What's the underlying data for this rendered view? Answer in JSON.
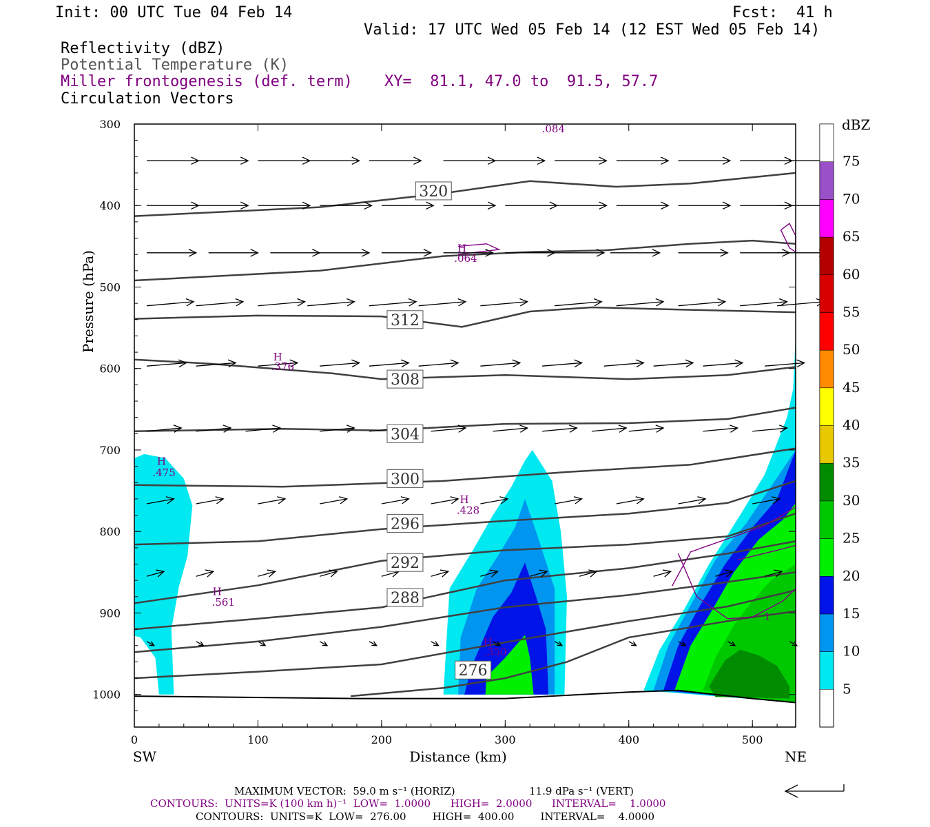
{
  "header": {
    "init": "Init: 00 UTC Tue 04 Feb 14",
    "fcst": "Fcst:  41 h",
    "valid": "Valid: 17 UTC Wed 05 Feb 14 (12 EST Wed 05 Feb 14)",
    "titles": [
      "Reflectivity (dBZ)",
      "Potential Temperature (K)",
      "Miller frontogenesis (def. term)",
      "Circulation Vectors"
    ],
    "xy": "XY=  81.1, 47.0 to  91.5, 57.7"
  },
  "colors": {
    "theta": "#404040",
    "fronto": "#800080",
    "levels": [
      "#00e8f0",
      "#0096f0",
      "#0014e8",
      "#00f000",
      "#00c800",
      "#008c00",
      "#e8c800",
      "#ffff00",
      "#ff8c00",
      "#ff0000",
      "#d80000",
      "#b40000",
      "#ff00ff",
      "#9a50c8"
    ]
  },
  "chart_data": {
    "type": "cross-section",
    "xlabel": "Distance (km)",
    "ylabel": "Pressure (hPa)",
    "xlim": [
      0,
      535
    ],
    "ylim": [
      1040,
      300
    ],
    "x_ticks": [
      0,
      100,
      200,
      300,
      400,
      500
    ],
    "y_ticks": [
      300,
      400,
      500,
      600,
      700,
      800,
      900,
      1000
    ],
    "x_end_labels": [
      "SW",
      "NE"
    ],
    "colorbar": {
      "unit": "dBZ",
      "ticks": [
        "5",
        "10",
        "15",
        "20",
        "25",
        "30",
        "35",
        "40",
        "45",
        "50",
        "55",
        "60",
        "65",
        "70",
        "75"
      ]
    },
    "theta_labels": [
      {
        "text": "320",
        "x": 242,
        "p": 382
      },
      {
        "text": "312",
        "x": 219,
        "p": 540
      },
      {
        "text": "308",
        "x": 219,
        "p": 613
      },
      {
        "text": "304",
        "x": 219,
        "p": 680
      },
      {
        "text": "300",
        "x": 219,
        "p": 735
      },
      {
        "text": "296",
        "x": 219,
        "p": 790
      },
      {
        "text": "292",
        "x": 219,
        "p": 838
      },
      {
        "text": "288",
        "x": 219,
        "p": 881
      },
      {
        "text": "276",
        "x": 274,
        "p": 970
      }
    ],
    "theta_lines": [
      [
        [
          0,
          413
        ],
        [
          150,
          402
        ],
        [
          250,
          385
        ],
        [
          320,
          370
        ],
        [
          390,
          377
        ],
        [
          450,
          373
        ],
        [
          535,
          360
        ]
      ],
      [
        [
          0,
          492
        ],
        [
          150,
          480
        ],
        [
          250,
          462
        ],
        [
          320,
          457
        ],
        [
          380,
          455
        ],
        [
          450,
          447
        ],
        [
          500,
          443
        ],
        [
          535,
          447
        ]
      ],
      [
        [
          0,
          539
        ],
        [
          100,
          535
        ],
        [
          200,
          536
        ],
        [
          265,
          549
        ],
        [
          320,
          530
        ],
        [
          370,
          525
        ],
        [
          450,
          528
        ],
        [
          535,
          531
        ]
      ],
      [
        [
          0,
          589
        ],
        [
          60,
          594
        ],
        [
          160,
          606
        ],
        [
          200,
          613
        ],
        [
          300,
          608
        ],
        [
          400,
          613
        ],
        [
          480,
          608
        ],
        [
          535,
          598
        ]
      ],
      [
        [
          0,
          677
        ],
        [
          120,
          674
        ],
        [
          200,
          676
        ],
        [
          300,
          668
        ],
        [
          400,
          667
        ],
        [
          480,
          662
        ],
        [
          535,
          648
        ]
      ],
      [
        [
          0,
          743
        ],
        [
          120,
          745
        ],
        [
          250,
          738
        ],
        [
          350,
          727
        ],
        [
          450,
          718
        ],
        [
          535,
          698
        ]
      ],
      [
        [
          0,
          816
        ],
        [
          100,
          812
        ],
        [
          200,
          797
        ],
        [
          300,
          787
        ],
        [
          400,
          778
        ],
        [
          480,
          765
        ],
        [
          535,
          738
        ]
      ],
      [
        [
          0,
          888
        ],
        [
          100,
          866
        ],
        [
          200,
          836
        ],
        [
          300,
          823
        ],
        [
          400,
          816
        ],
        [
          480,
          806
        ],
        [
          535,
          778
        ]
      ],
      [
        [
          0,
          920
        ],
        [
          100,
          907
        ],
        [
          200,
          893
        ],
        [
          300,
          860
        ],
        [
          400,
          845
        ],
        [
          480,
          827
        ],
        [
          535,
          812
        ]
      ],
      [
        [
          0,
          948
        ],
        [
          100,
          935
        ],
        [
          200,
          917
        ],
        [
          300,
          893
        ],
        [
          400,
          878
        ],
        [
          480,
          862
        ],
        [
          535,
          850
        ]
      ],
      [
        [
          0,
          980
        ],
        [
          100,
          972
        ],
        [
          200,
          963
        ],
        [
          300,
          936
        ],
        [
          400,
          910
        ],
        [
          480,
          892
        ],
        [
          535,
          872
        ]
      ],
      [
        [
          175,
          1002
        ],
        [
          250,
          992
        ],
        [
          300,
          980
        ],
        [
          350,
          960
        ],
        [
          400,
          930
        ],
        [
          460,
          915
        ],
        [
          500,
          905
        ],
        [
          535,
          898
        ]
      ]
    ],
    "ground": [
      [
        0,
        1002
      ],
      [
        180,
        1005
      ],
      [
        300,
        1005
      ],
      [
        400,
        997
      ],
      [
        440,
        995
      ],
      [
        500,
        1005
      ],
      [
        535,
        1010
      ]
    ],
    "fronto_boxes": [
      {
        "text": ".084",
        "x": 339,
        "p": 305
      },
      {
        "text": "H",
        "x": 265,
        "p": 452
      },
      {
        "text": ".064",
        "x": 268,
        "p": 464
      },
      {
        "text": "H",
        "x": 116,
        "p": 585
      },
      {
        "text": ".376",
        "x": 120,
        "p": 597
      },
      {
        "text": "H",
        "x": 22,
        "p": 713
      },
      {
        "text": ".475",
        "x": 24,
        "p": 727
      },
      {
        "text": "H",
        "x": 267,
        "p": 760
      },
      {
        "text": ".428",
        "x": 270,
        "p": 773
      },
      {
        "text": "H",
        "x": 67,
        "p": 873
      },
      {
        "text": ".561",
        "x": 72,
        "p": 886
      },
      {
        "text": "H",
        "x": 286,
        "p": 935
      },
      {
        "text": ".350",
        "x": 292,
        "p": 947
      },
      {
        "text": "1",
        "x": 512,
        "p": 904
      }
    ],
    "fronto_lines": [
      [
        [
          440,
          827
        ],
        [
          455,
          880
        ],
        [
          480,
          907
        ],
        [
          500,
          905
        ],
        [
          525,
          885
        ],
        [
          535,
          870
        ]
      ],
      [
        [
          435,
          867
        ],
        [
          450,
          825
        ],
        [
          510,
          793
        ],
        [
          535,
          770
        ]
      ],
      [
        [
          488,
          835
        ],
        [
          520,
          823
        ],
        [
          535,
          817
        ]
      ],
      [
        [
          262,
          450
        ],
        [
          285,
          447
        ],
        [
          295,
          454
        ],
        [
          262,
          460
        ]
      ],
      [
        [
          523,
          430
        ],
        [
          530,
          422
        ],
        [
          535,
          437
        ],
        [
          535,
          457
        ],
        [
          530,
          452
        ],
        [
          523,
          430
        ]
      ]
    ],
    "reflectivity_polys": [
      {
        "level": 0,
        "pts": [
          [
            0,
            1000
          ],
          [
            0,
            710
          ],
          [
            8,
            705
          ],
          [
            25,
            710
          ],
          [
            40,
            735
          ],
          [
            47,
            768
          ],
          [
            43,
            830
          ],
          [
            36,
            868
          ],
          [
            30,
            920
          ],
          [
            32,
            1000
          ],
          [
            20,
            1000
          ],
          [
            17,
            955
          ],
          [
            5,
            930
          ],
          [
            0,
            928
          ]
        ]
      },
      {
        "level": 0,
        "pts": [
          [
            250,
            1000
          ],
          [
            255,
            870
          ],
          [
            275,
            820
          ],
          [
            290,
            780
          ],
          [
            305,
            745
          ],
          [
            316,
            713
          ],
          [
            322,
            700
          ],
          [
            338,
            738
          ],
          [
            345,
            800
          ],
          [
            350,
            880
          ],
          [
            348,
            1000
          ]
        ]
      },
      {
        "level": 1,
        "pts": [
          [
            262,
            1000
          ],
          [
            264,
            930
          ],
          [
            277,
            870
          ],
          [
            295,
            828
          ],
          [
            308,
            795
          ],
          [
            316,
            760
          ],
          [
            325,
            800
          ],
          [
            340,
            870
          ],
          [
            340,
            1000
          ]
        ]
      },
      {
        "level": 2,
        "pts": [
          [
            267,
            1000
          ],
          [
            273,
            965
          ],
          [
            290,
            905
          ],
          [
            305,
            875
          ],
          [
            316,
            838
          ],
          [
            325,
            880
          ],
          [
            333,
            920
          ],
          [
            335,
            1000
          ]
        ]
      },
      {
        "level": 3,
        "pts": [
          [
            284,
            1000
          ],
          [
            285,
            978
          ],
          [
            300,
            955
          ],
          [
            316,
            927
          ],
          [
            320,
            955
          ],
          [
            323,
            1000
          ]
        ]
      },
      {
        "level": 0,
        "pts": [
          [
            412,
            995
          ],
          [
            425,
            945
          ],
          [
            445,
            895
          ],
          [
            465,
            840
          ],
          [
            490,
            780
          ],
          [
            510,
            730
          ],
          [
            528,
            660
          ],
          [
            533,
            625
          ],
          [
            535,
            560
          ],
          [
            535,
            1010
          ]
        ]
      },
      {
        "level": 1,
        "pts": [
          [
            420,
            995
          ],
          [
            432,
            940
          ],
          [
            452,
            885
          ],
          [
            470,
            835
          ],
          [
            495,
            790
          ],
          [
            515,
            745
          ],
          [
            535,
            700
          ],
          [
            535,
            1010
          ]
        ]
      },
      {
        "level": 2,
        "pts": [
          [
            428,
            995
          ],
          [
            440,
            940
          ],
          [
            458,
            890
          ],
          [
            478,
            840
          ],
          [
            500,
            795
          ],
          [
            520,
            760
          ],
          [
            535,
            700
          ],
          [
            535,
            1010
          ]
        ]
      },
      {
        "level": 3,
        "pts": [
          [
            437,
            995
          ],
          [
            450,
            940
          ],
          [
            468,
            895
          ],
          [
            485,
            850
          ],
          [
            505,
            810
          ],
          [
            525,
            785
          ],
          [
            535,
            765
          ],
          [
            535,
            1010
          ]
        ]
      },
      {
        "level": 4,
        "pts": [
          [
            460,
            995
          ],
          [
            470,
            955
          ],
          [
            485,
            915
          ],
          [
            500,
            885
          ],
          [
            515,
            860
          ],
          [
            535,
            840
          ],
          [
            535,
            1010
          ]
        ]
      },
      {
        "level": 5,
        "pts": [
          [
            465,
            990
          ],
          [
            478,
            958
          ],
          [
            490,
            945
          ],
          [
            505,
            952
          ],
          [
            520,
            965
          ],
          [
            530,
            990
          ],
          [
            530,
            1005
          ],
          [
            470,
            1003
          ]
        ]
      }
    ],
    "vector_rows": [
      {
        "p": 345,
        "xs": [
          10,
          50,
          100,
          140,
          190,
          250,
          290,
          340,
          390,
          440,
          490,
          520
        ],
        "dx": 42,
        "dp": 0
      },
      {
        "p": 400,
        "xs": [
          10,
          50,
          100,
          150,
          200,
          250,
          300,
          340,
          390,
          440,
          490,
          520
        ],
        "dx": 42,
        "dp": 0
      },
      {
        "p": 458,
        "xs": [
          10,
          60,
          110,
          150,
          200,
          250,
          300,
          340,
          385,
          440,
          490,
          520
        ],
        "dx": 40,
        "dp": 0
      },
      {
        "p": 523,
        "xs": [
          10,
          50,
          100,
          140,
          190,
          230,
          280,
          340,
          390,
          440,
          490,
          520
        ],
        "dx": 38,
        "dp": -5
      },
      {
        "p": 597,
        "xs": [
          10,
          50,
          100,
          150,
          190,
          230,
          280,
          330,
          380,
          420,
          460,
          510
        ],
        "dx": 32,
        "dp": -4
      },
      {
        "p": 677,
        "xs": [
          10,
          50,
          90,
          150,
          190,
          240,
          290,
          330,
          370,
          400,
          460,
          500
        ],
        "dx": 28,
        "dp": -4
      },
      {
        "p": 766,
        "xs": [
          10,
          50,
          100,
          150,
          200,
          240,
          280,
          340,
          390,
          440,
          500
        ],
        "dx": 22,
        "dp": -6
      },
      {
        "p": 855,
        "xs": [
          10,
          50,
          100,
          150,
          200,
          240,
          280,
          320,
          360,
          420,
          470,
          510
        ],
        "dx": 14,
        "dp": -6
      },
      {
        "p": 935,
        "xs": [
          10,
          50,
          100,
          150,
          190,
          240,
          290,
          340,
          400,
          440,
          480,
          530
        ],
        "dx": 6,
        "dp": 5
      }
    ],
    "vector_labels": {
      "max_vector": "MAXIMUM VECTOR:  59.0 m s⁻¹ (HORIZ)",
      "vert": "11.9 dPa s⁻¹ (VERT)"
    },
    "contour_notes": [
      "CONTOURS:  UNITS=K (100 km h)⁻¹  LOW=  1.0000      HIGH=  2.0000      INTERVAL=    1.0000",
      "CONTOURS:  UNITS=K  LOW=  276.00        HIGH=  400.00        INTERVAL=    4.0000"
    ]
  }
}
